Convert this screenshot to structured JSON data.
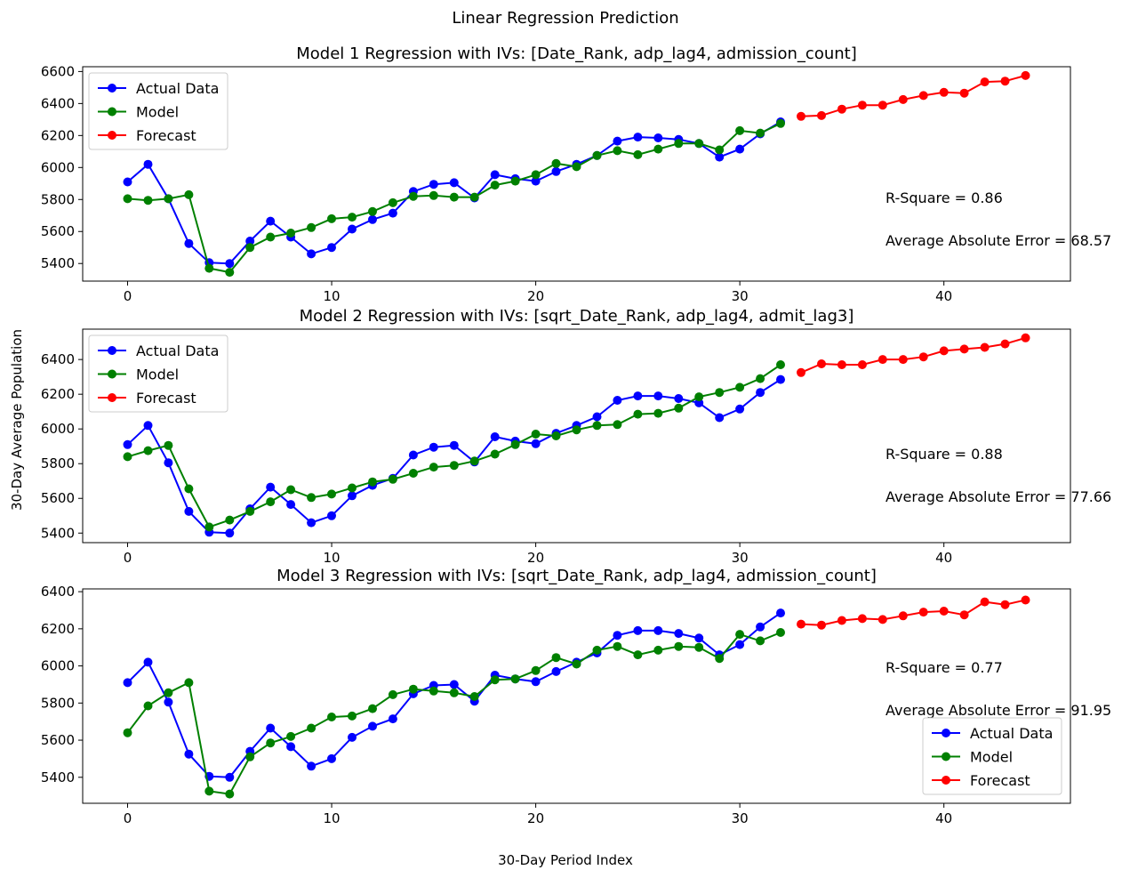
{
  "figure": {
    "suptitle": "Linear Regression Prediction",
    "xlabel": "30-Day Period Index",
    "ylabel": "30-Day Average Population"
  },
  "chart_data": [
    {
      "type": "line",
      "title": "Model 1 Regression with IVs: [Date_Rank, adp_lag4, admission_count]",
      "xlim": [
        -2.2,
        46.2
      ],
      "ylim": [
        5290,
        6630
      ],
      "xticks": [
        0,
        10,
        20,
        30,
        40
      ],
      "yticks": [
        5400,
        5600,
        5800,
        6000,
        6200,
        6400,
        6600
      ],
      "legend_position": "upper-left",
      "annotations": [
        {
          "text": "R-Square = 0.86"
        },
        {
          "text": "Average Absolute Error = 68.57"
        }
      ],
      "series": [
        {
          "name": "Actual Data",
          "color": "#0000ff",
          "x_start": 0,
          "values": [
            5910,
            6020,
            5805,
            5525,
            5405,
            5400,
            5540,
            5665,
            5565,
            5460,
            5500,
            5615,
            5675,
            5715,
            5850,
            5895,
            5905,
            5810,
            5955,
            5930,
            5915,
            5975,
            6020,
            6075,
            6165,
            6190,
            6185,
            6175,
            6150,
            6065,
            6115,
            6210,
            6285
          ]
        },
        {
          "name": "Model",
          "color": "#008000",
          "x_start": 0,
          "values": [
            5805,
            5795,
            5805,
            5830,
            5370,
            5345,
            5500,
            5565,
            5590,
            5625,
            5680,
            5690,
            5725,
            5780,
            5820,
            5825,
            5815,
            5815,
            5890,
            5915,
            5955,
            6025,
            6005,
            6075,
            6105,
            6080,
            6115,
            6150,
            6150,
            6110,
            6230,
            6215,
            6275
          ]
        },
        {
          "name": "Forecast",
          "color": "#ff0000",
          "x_start": 33,
          "values": [
            6320,
            6325,
            6365,
            6390,
            6390,
            6425,
            6450,
            6470,
            6465,
            6535,
            6540,
            6575
          ]
        }
      ]
    },
    {
      "type": "line",
      "title": "Model 2 Regression with IVs: [sqrt_Date_Rank, adp_lag4, admit_lag3]",
      "xlim": [
        -2.2,
        46.2
      ],
      "ylim": [
        5345,
        6575
      ],
      "xticks": [
        0,
        10,
        20,
        30,
        40
      ],
      "yticks": [
        5400,
        5600,
        5800,
        6000,
        6200,
        6400
      ],
      "legend_position": "upper-left",
      "annotations": [
        {
          "text": "R-Square = 0.88"
        },
        {
          "text": "Average Absolute Error = 77.66"
        }
      ],
      "series": [
        {
          "name": "Actual Data",
          "color": "#0000ff",
          "x_start": 0,
          "values": [
            5910,
            6020,
            5805,
            5525,
            5405,
            5400,
            5540,
            5665,
            5565,
            5460,
            5500,
            5615,
            5675,
            5715,
            5850,
            5895,
            5905,
            5810,
            5955,
            5930,
            5915,
            5975,
            6020,
            6070,
            6165,
            6190,
            6190,
            6175,
            6150,
            6065,
            6115,
            6210,
            6285
          ]
        },
        {
          "name": "Model",
          "color": "#008000",
          "x_start": 0,
          "values": [
            5840,
            5875,
            5905,
            5655,
            5435,
            5475,
            5525,
            5580,
            5650,
            5605,
            5625,
            5660,
            5695,
            5710,
            5745,
            5780,
            5790,
            5815,
            5855,
            5910,
            5970,
            5960,
            5995,
            6020,
            6025,
            6085,
            6090,
            6120,
            6185,
            6210,
            6240,
            6290,
            6370
          ]
        },
        {
          "name": "Forecast",
          "color": "#ff0000",
          "x_start": 33,
          "values": [
            6325,
            6375,
            6370,
            6370,
            6400,
            6400,
            6415,
            6450,
            6460,
            6470,
            6490,
            6525
          ]
        }
      ]
    },
    {
      "type": "line",
      "title": "Model 3 Regression with IVs: [sqrt_Date_Rank, adp_lag4, admission_count]",
      "xlim": [
        -2.2,
        46.2
      ],
      "ylim": [
        5260,
        6415
      ],
      "xticks": [
        0,
        10,
        20,
        30,
        40
      ],
      "yticks": [
        5400,
        5600,
        5800,
        6000,
        6200,
        6400
      ],
      "legend_position": "lower-right",
      "annotations": [
        {
          "text": "R-Square = 0.77"
        },
        {
          "text": "Average Absolute Error = 91.95"
        }
      ],
      "series": [
        {
          "name": "Actual Data",
          "color": "#0000ff",
          "x_start": 0,
          "values": [
            5910,
            6020,
            5805,
            5525,
            5405,
            5400,
            5540,
            5665,
            5565,
            5460,
            5500,
            5615,
            5675,
            5715,
            5850,
            5895,
            5900,
            5810,
            5950,
            5930,
            5915,
            5970,
            6020,
            6070,
            6165,
            6190,
            6190,
            6175,
            6150,
            6060,
            6115,
            6210,
            6285
          ]
        },
        {
          "name": "Model",
          "color": "#008000",
          "x_start": 0,
          "values": [
            5640,
            5785,
            5855,
            5910,
            5325,
            5310,
            5510,
            5585,
            5620,
            5665,
            5725,
            5730,
            5770,
            5845,
            5875,
            5865,
            5855,
            5835,
            5925,
            5930,
            5975,
            6045,
            6010,
            6085,
            6105,
            6060,
            6085,
            6105,
            6100,
            6040,
            6170,
            6135,
            6180
          ]
        },
        {
          "name": "Forecast",
          "color": "#ff0000",
          "x_start": 33,
          "values": [
            6225,
            6220,
            6245,
            6255,
            6250,
            6270,
            6290,
            6295,
            6275,
            6345,
            6330,
            6355
          ]
        }
      ]
    }
  ]
}
